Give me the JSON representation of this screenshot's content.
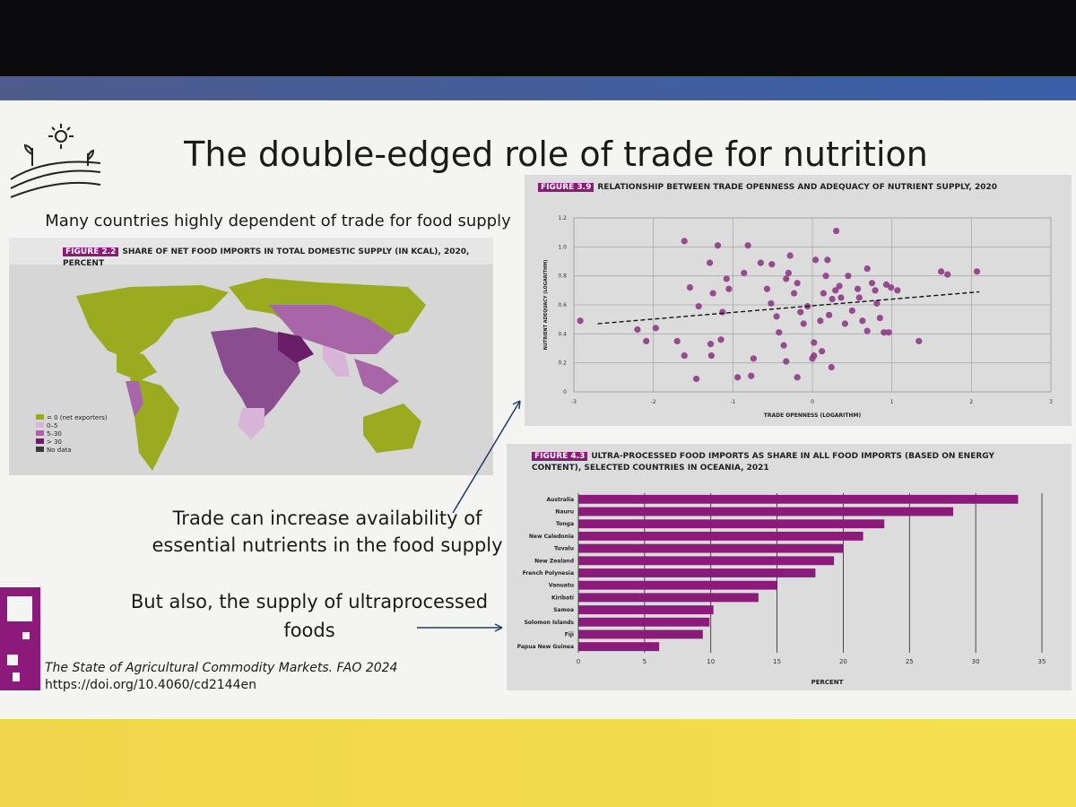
{
  "slide": {
    "title": "The double-edged role of trade for nutrition",
    "subtitle": "Many countries highly dependent of trade for food supply",
    "callouts": [
      "Trade can increase availability of essential nutrients in the food supply",
      "But also, the supply of ultraprocessed foods"
    ],
    "citation": "The State of Agricultural Commodity Markets. FAO 2024",
    "url": "https://doi.org/10.4060/cd2144en"
  },
  "map_figure": {
    "label": "FIGURE 2.2",
    "title": "SHARE OF NET FOOD IMPORTS IN TOTAL DOMESTIC SUPPLY (IN KCAL), 2020, PERCENT",
    "legend": [
      {
        "label": "= 0 (net exporters)",
        "color": "#9bab20"
      },
      {
        "label": "0–5",
        "color": "#d8b4d8"
      },
      {
        "label": "5–30",
        "color": "#a866a8"
      },
      {
        "label": "> 30",
        "color": "#6a1e6a"
      },
      {
        "label": "No data",
        "color": "#3a3a3a"
      }
    ]
  },
  "chart_data": [
    {
      "type": "scatter",
      "figure_label": "FIGURE 3.9",
      "title": "RELATIONSHIP BETWEEN TRADE OPENNESS AND ADEQUACY OF NUTRIENT SUPPLY, 2020",
      "xlabel": "TRADE OPENNESS (LOGARITHM)",
      "ylabel": "NUTRIENT ADEQUACY (LOGARITHM)",
      "color": "#8e3a86",
      "x": [
        -1.61,
        -1.19,
        0.3,
        -2.92,
        -2.2,
        -2.09,
        -1.97,
        -1.7,
        -1.61,
        -1.46,
        -1.43,
        -1.54,
        -1.29,
        -1.25,
        -1.08,
        -1.05,
        -1.13,
        -1.15,
        -1.28,
        -1.27,
        -0.94,
        -0.74,
        -0.77,
        -0.86,
        -0.81,
        -0.65,
        -0.51,
        -0.57,
        -0.52,
        -0.45,
        -0.42,
        -0.36,
        -0.33,
        -0.3,
        -0.28,
        -0.23,
        -0.19,
        -0.15,
        -0.11,
        -0.06,
        0,
        0.02,
        0.04,
        0.1,
        0.14,
        0.17,
        0.19,
        0.21,
        0.12,
        0.24,
        0.25,
        0.29,
        0.34,
        0.36,
        0.41,
        0.45,
        0.5,
        0.57,
        0.59,
        0.63,
        0.69,
        0.75,
        0.79,
        0.81,
        0.85,
        0.9,
        0.96,
        0.93,
        0.99,
        1.07,
        1.34,
        1.62,
        1.7,
        2.07,
        -0.19,
        0.02,
        -0.33,
        0.69
      ],
      "y": [
        1.04,
        1.01,
        1.11,
        0.49,
        0.43,
        0.35,
        0.44,
        0.35,
        0.25,
        0.09,
        0.59,
        0.72,
        0.89,
        0.68,
        0.78,
        0.71,
        0.55,
        0.36,
        0.33,
        0.25,
        0.1,
        0.23,
        0.11,
        0.82,
        1.01,
        0.89,
        0.88,
        0.71,
        0.61,
        0.52,
        0.41,
        0.32,
        0.78,
        0.82,
        0.94,
        0.68,
        0.75,
        0.55,
        0.47,
        0.59,
        0.23,
        0.34,
        0.91,
        0.49,
        0.68,
        0.8,
        0.91,
        0.53,
        0.28,
        0.17,
        0.64,
        0.7,
        0.73,
        0.65,
        0.47,
        0.8,
        0.56,
        0.71,
        0.65,
        0.49,
        0.85,
        0.75,
        0.7,
        0.61,
        0.51,
        0.41,
        0.41,
        0.74,
        0.72,
        0.7,
        0.35,
        0.83,
        0.81,
        0.83,
        0.1,
        0.25,
        0.21,
        0.42
      ],
      "trendline": {
        "x": [
          -2.7,
          2.1
        ],
        "y": [
          0.47,
          0.69
        ]
      },
      "xlim": [
        -3,
        3
      ],
      "xticks": [
        -3,
        -2,
        -1,
        0,
        1,
        2,
        3
      ],
      "ylim": [
        0,
        1.2
      ],
      "yticks": [
        0,
        0.2,
        0.4,
        0.6,
        0.8,
        {
          "value": 1,
          "label": "1.0"
        },
        1.2
      ],
      "grid": true
    },
    {
      "type": "bar",
      "orientation": "horizontal",
      "figure_label": "FIGURE 4.3",
      "title": "ULTRA-PROCESSED FOOD IMPORTS AS SHARE IN ALL FOOD IMPORTS (BASED ON ENERGY CONTENT), SELECTED COUNTRIES IN OCEANIA, 2021",
      "xlabel": "PERCENT",
      "color": "#8b1a7a",
      "categories": [
        "Australia",
        "Nauru",
        "Tonga",
        "New Caledonia",
        "Tuvalu",
        "New Zealand",
        "French Polynesia",
        "Vanuatu",
        "Kiribati",
        "Samoa",
        "Solomon Islands",
        "Fiji",
        "Papua New Guinea"
      ],
      "values": [
        33.2,
        28.3,
        23.1,
        21.5,
        20.0,
        19.3,
        17.9,
        15.0,
        13.6,
        10.2,
        9.9,
        9.4,
        6.1
      ],
      "xlim": [
        0,
        35
      ],
      "xticks": [
        0,
        5,
        10,
        15,
        20,
        25,
        30,
        35
      ],
      "grid": true
    }
  ]
}
